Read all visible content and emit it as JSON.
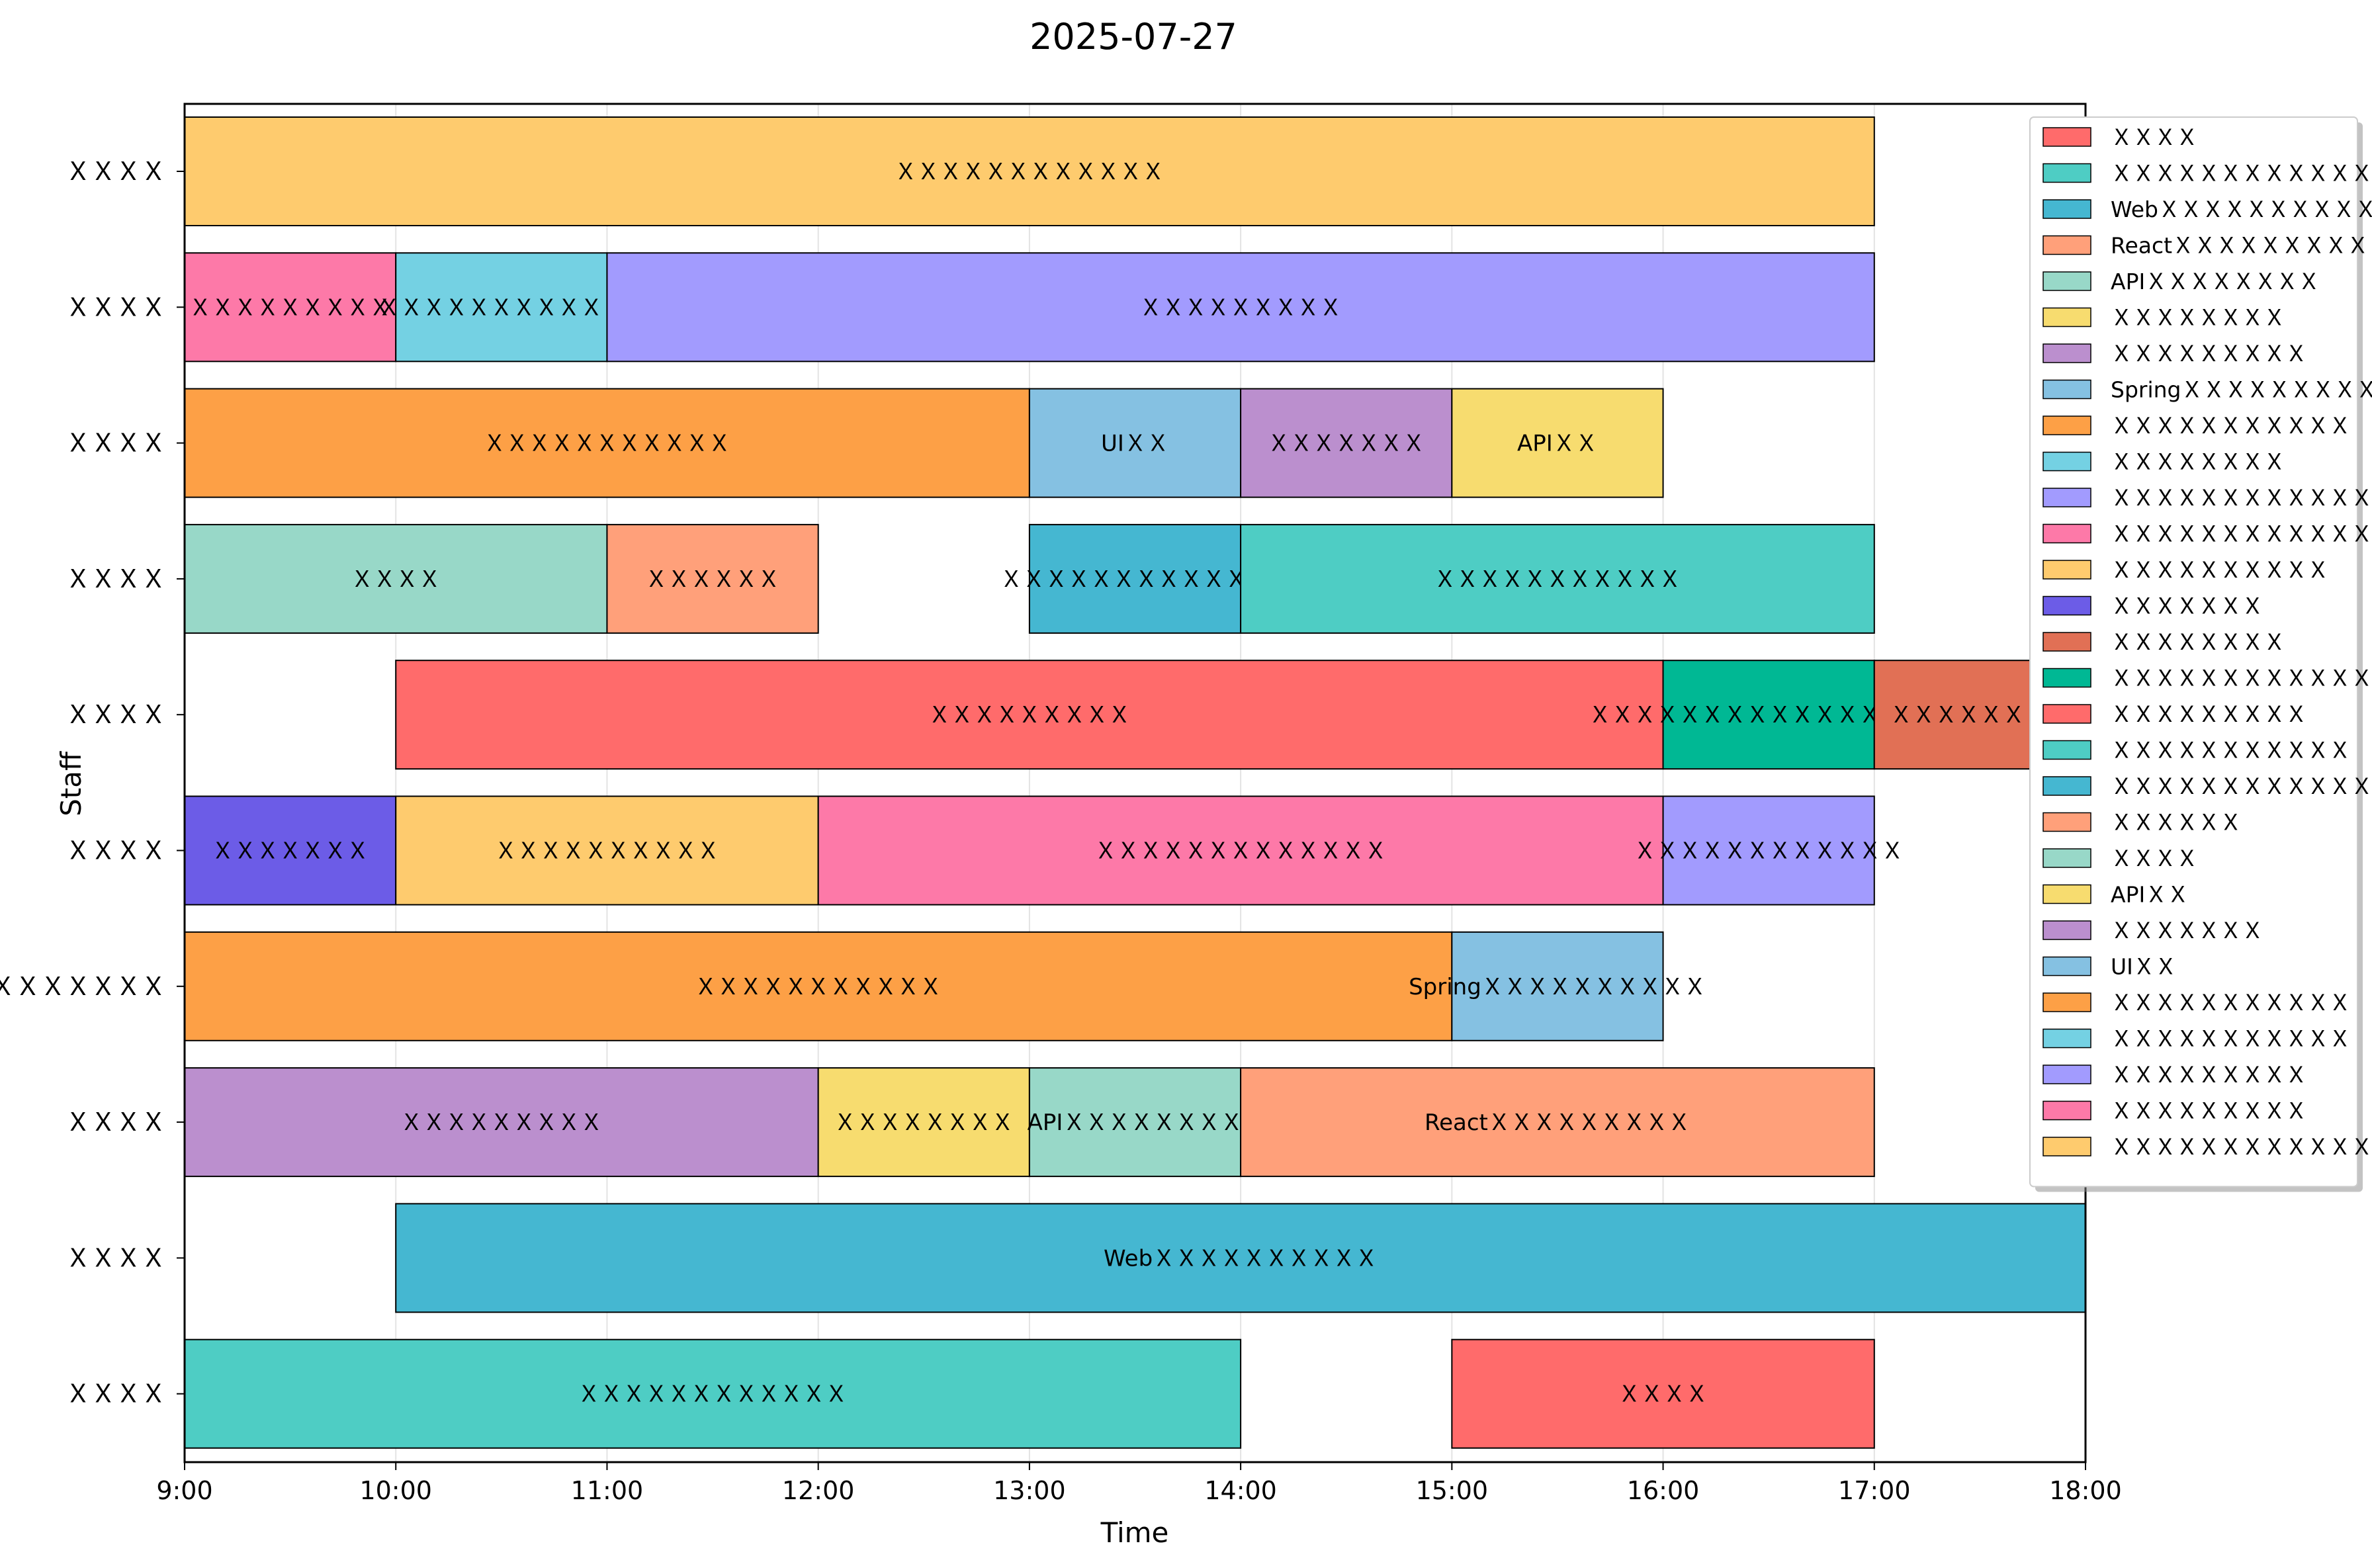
{
  "chart_data": {
    "type": "gantt",
    "title": "2025-07-27",
    "xlabel": "Time",
    "ylabel": "Staff",
    "x_ticks": [
      "9:00",
      "10:00",
      "11:00",
      "12:00",
      "13:00",
      "14:00",
      "15:00",
      "16:00",
      "17:00",
      "18:00"
    ],
    "x_range_hours": [
      9,
      18
    ],
    "grid": "vertical",
    "legend_position": "top-right",
    "staff": [
      "ＸＸＸＸ",
      "ＸＸＸＸ",
      "ＸＸＸＸ",
      "ＸＸＸＸ",
      "ＸＸＸＸ",
      "ＸＸＸＸ",
      "ＸＸＸＸＸＸＸＸＸ",
      "ＸＸＸＸ",
      "ＸＸＸＸ",
      "ＸＸＸＸ"
    ],
    "tasks": [
      {
        "staff_index": 0,
        "start": 9,
        "end": 17,
        "label": "ＸＸＸＸＸＸＸＸＸＸＸＸ",
        "color": "#FECB6E"
      },
      {
        "staff_index": 1,
        "start": 9,
        "end": 10,
        "label": "ＸＸＸＸＸＸＸＸＸ",
        "color": "#FD79A8"
      },
      {
        "staff_index": 1,
        "start": 10,
        "end": 11,
        "label": "ＸＸＸＸＸＸＸＸＸＸＸ",
        "color": "#74D1E3"
      },
      {
        "staff_index": 1,
        "start": 11,
        "end": 17,
        "label": "ＸＸＸＸＸＸＸＸＸ",
        "color": "#A29BFE"
      },
      {
        "staff_index": 2,
        "start": 9,
        "end": 13,
        "label": "ＸＸＸＸＸＸＸＸＸＸＸ",
        "color": "#FDA046"
      },
      {
        "staff_index": 2,
        "start": 13,
        "end": 14,
        "label": "UIＸＸ",
        "color": "#85C1E2"
      },
      {
        "staff_index": 2,
        "start": 14,
        "end": 15,
        "label": "ＸＸＸＸＸＸＸ",
        "color": "#BB8FCE"
      },
      {
        "staff_index": 2,
        "start": 15,
        "end": 16,
        "label": "APIＸＸ",
        "color": "#F7DC6F"
      },
      {
        "staff_index": 3,
        "start": 9,
        "end": 11,
        "label": "ＸＸＸＸ",
        "color": "#98D8C8"
      },
      {
        "staff_index": 3,
        "start": 11,
        "end": 12,
        "label": "ＸＸＸＸＸＸ",
        "color": "#FFA07A"
      },
      {
        "staff_index": 3,
        "start": 13,
        "end": 14,
        "label": "ＸＸＸＸＸＸＸＸＸＸＸＸ",
        "color": "#45B7D1"
      },
      {
        "staff_index": 3,
        "start": 14,
        "end": 17,
        "label": "ＸＸＸＸＸＸＸＸＸＸＸ",
        "color": "#4ECDC4"
      },
      {
        "staff_index": 4,
        "start": 10,
        "end": 16,
        "label": "ＸＸＸＸＸＸＸＸＸ",
        "color": "#FF6B6B"
      },
      {
        "staff_index": 4,
        "start": 16,
        "end": 17,
        "label": "ＸＸＸＸＸＸＸＸＸＸＸＸＸＸＸＸ",
        "color": "#00B894"
      },
      {
        "staff_index": 4,
        "start": 17,
        "end": 18,
        "label": "ＸＸＸＸＸＸＸＸ",
        "color": "#E17055"
      },
      {
        "staff_index": 5,
        "start": 9,
        "end": 10,
        "label": "ＸＸＸＸＸＸＸ",
        "color": "#6C5CE7"
      },
      {
        "staff_index": 5,
        "start": 10,
        "end": 12,
        "label": "ＸＸＸＸＸＸＸＸＸＸ",
        "color": "#FECB6E"
      },
      {
        "staff_index": 5,
        "start": 12,
        "end": 16,
        "label": "ＸＸＸＸＸＸＸＸＸＸＸＸＸ",
        "color": "#FD79A8"
      },
      {
        "staff_index": 5,
        "start": 16,
        "end": 17,
        "label": "ＸＸＸＸＸＸＸＸＸＸＸＸ",
        "color": "#A29BFE"
      },
      {
        "staff_index": 6,
        "start": 9,
        "end": 15,
        "label": "ＸＸＸＸＸＸＸＸＸＸＸ",
        "color": "#FDA046"
      },
      {
        "staff_index": 6,
        "start": 15,
        "end": 16,
        "label": "SpringＸＸＸＸＸＸＸＸＸＸ",
        "color": "#85C1E2"
      },
      {
        "staff_index": 7,
        "start": 9,
        "end": 12,
        "label": "ＸＸＸＸＸＸＸＸＸ",
        "color": "#BB8FCE"
      },
      {
        "staff_index": 7,
        "start": 12,
        "end": 13,
        "label": "ＸＸＸＸＸＸＸＸ",
        "color": "#F7DC6F"
      },
      {
        "staff_index": 7,
        "start": 13,
        "end": 14,
        "label": "APIＸＸＸＸＸＸＸＸ",
        "color": "#98D8C8"
      },
      {
        "staff_index": 7,
        "start": 14,
        "end": 17,
        "label": "ReactＸＸＸＸＸＸＸＸＸ",
        "color": "#FFA07A"
      },
      {
        "staff_index": 8,
        "start": 10,
        "end": 18,
        "label": "WebＸＸＸＸＸＸＸＸＸＸ",
        "color": "#45B7D1"
      },
      {
        "staff_index": 9,
        "start": 9,
        "end": 14,
        "label": "ＸＸＸＸＸＸＸＸＸＸＸＸ",
        "color": "#4ECDC4"
      },
      {
        "staff_index": 9,
        "start": 15,
        "end": 17,
        "label": "ＸＸＸＸ",
        "color": "#FF6B6B"
      }
    ],
    "legend": [
      {
        "label": "ＸＸＸＸ",
        "color": "#FF6B6B"
      },
      {
        "label": "ＸＸＸＸＸＸＸＸＸＸＸＸ",
        "color": "#4ECDC4"
      },
      {
        "label": "WebＸＸＸＸＸＸＸＸＸＸ",
        "color": "#45B7D1"
      },
      {
        "label": "ReactＸＸＸＸＸＸＸＸＸ",
        "color": "#FFA07A"
      },
      {
        "label": "APIＸＸＸＸＸＸＸＸ",
        "color": "#98D8C8"
      },
      {
        "label": "ＸＸＸＸＸＸＸＸ",
        "color": "#F7DC6F"
      },
      {
        "label": "ＸＸＸＸＸＸＸＸＸ",
        "color": "#BB8FCE"
      },
      {
        "label": "SpringＸＸＸＸＸＸＸＸＸＸ",
        "color": "#85C1E2"
      },
      {
        "label": "ＸＸＸＸＸＸＸＸＸＸＸ",
        "color": "#FDA046"
      },
      {
        "label": "ＸＸＸＸＸＸＸＸ",
        "color": "#74D1E3"
      },
      {
        "label": "ＸＸＸＸＸＸＸＸＸＸＸＸ",
        "color": "#A29BFE"
      },
      {
        "label": "ＸＸＸＸＸＸＸＸＸＸＸＸＸ",
        "color": "#FD79A8"
      },
      {
        "label": "ＸＸＸＸＸＸＸＸＸＸ",
        "color": "#FECB6E"
      },
      {
        "label": "ＸＸＸＸＸＸＸ",
        "color": "#6C5CE7"
      },
      {
        "label": "ＸＸＸＸＸＸＸＸ",
        "color": "#E17055"
      },
      {
        "label": "ＸＸＸＸＸＸＸＸＸＸＸＸＸＸＸＸ",
        "color": "#00B894"
      },
      {
        "label": "ＸＸＸＸＸＸＸＸＸ",
        "color": "#FF6B6B"
      },
      {
        "label": "ＸＸＸＸＸＸＸＸＸＸＸ",
        "color": "#4ECDC4"
      },
      {
        "label": "ＸＸＸＸＸＸＸＸＸＸＸＸ",
        "color": "#45B7D1"
      },
      {
        "label": "ＸＸＸＸＸＸ",
        "color": "#FFA07A"
      },
      {
        "label": "ＸＸＸＸ",
        "color": "#98D8C8"
      },
      {
        "label": "APIＸＸ",
        "color": "#F7DC6F"
      },
      {
        "label": "ＸＸＸＸＸＸＸ",
        "color": "#BB8FCE"
      },
      {
        "label": "UIＸＸ",
        "color": "#85C1E2"
      },
      {
        "label": "ＸＸＸＸＸＸＸＸＸＸＸ",
        "color": "#FDA046"
      },
      {
        "label": "ＸＸＸＸＸＸＸＸＸＸＸ",
        "color": "#74D1E3"
      },
      {
        "label": "ＸＸＸＸＸＸＸＸＸ",
        "color": "#A29BFE"
      },
      {
        "label": "ＸＸＸＸＸＸＸＸＸ",
        "color": "#FD79A8"
      },
      {
        "label": "ＸＸＸＸＸＸＸＸＸＸＸＸ",
        "color": "#FECB6E"
      }
    ]
  }
}
